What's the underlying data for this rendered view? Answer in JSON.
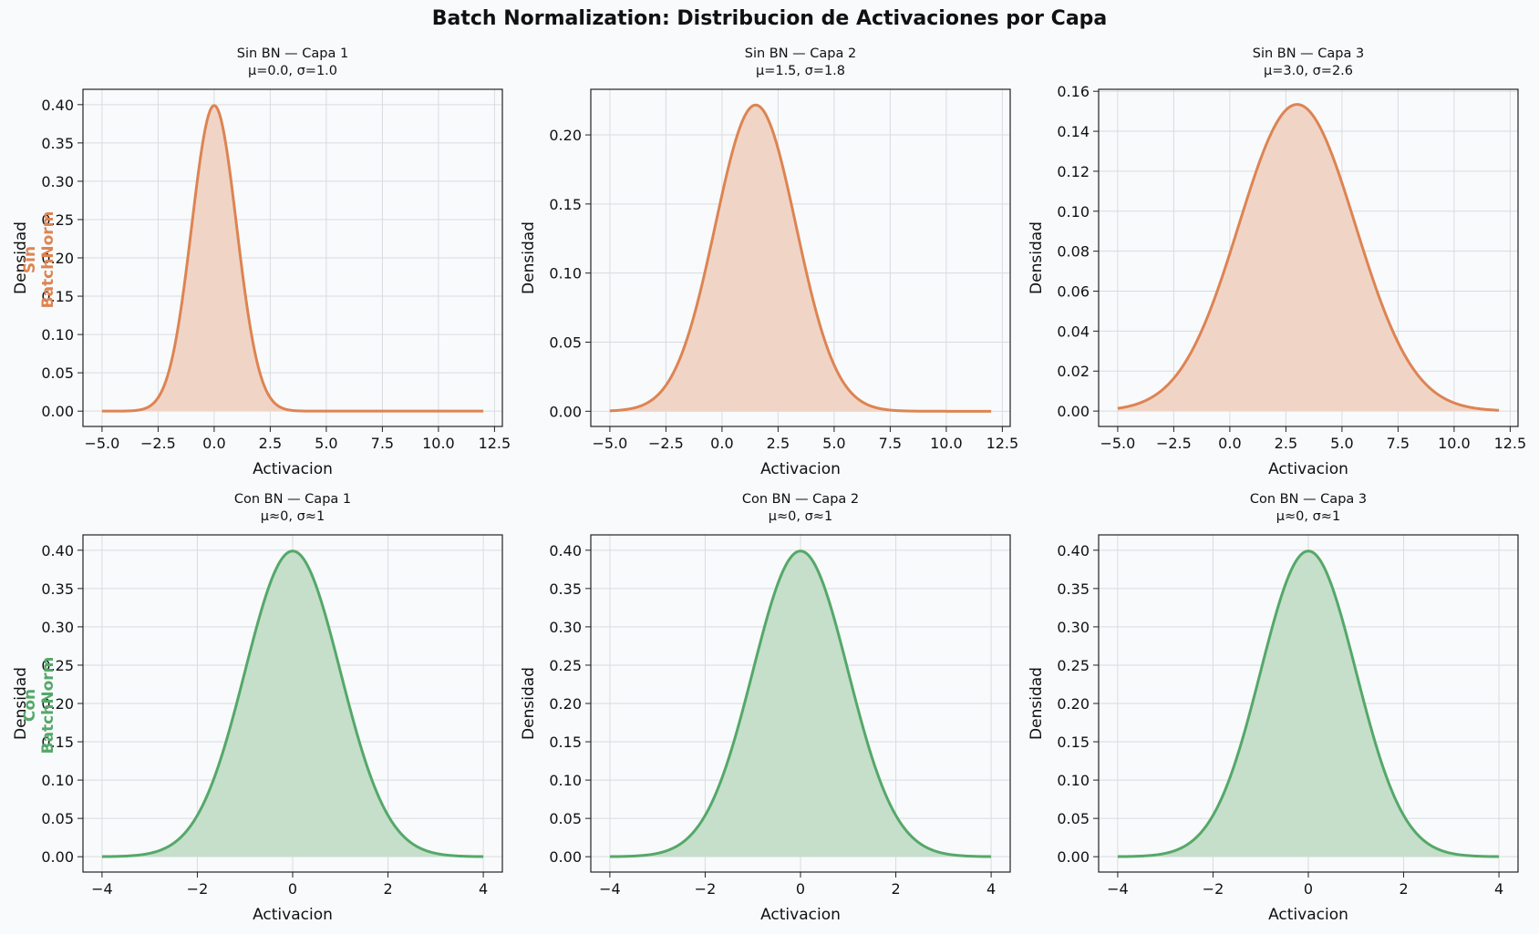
{
  "figure": {
    "title": "Batch Normalization: Distribucion de Activaciones por Capa"
  },
  "colors": {
    "without_bn": "#dd8452",
    "with_bn": "#55a868",
    "without_bn_fill": "#f0d5c7",
    "with_bn_fill": "#c5dfcb"
  },
  "row_labels": [
    {
      "lines": [
        "Sin",
        "BatchNorm"
      ],
      "color": "#dd8452"
    },
    {
      "lines": [
        "Con",
        "BatchNorm"
      ],
      "color": "#55a868"
    }
  ],
  "chart_data": [
    {
      "type": "area",
      "title": "Sin BN — Capa 1",
      "subtitle": "μ=0.0, σ=1.0",
      "xlabel": "Activacion",
      "ylabel": "Densidad",
      "mean": 0.0,
      "std": 1.0,
      "x_range": [
        -5,
        12
      ],
      "xlim": [
        -5.85,
        12.85
      ],
      "ylim": [
        -0.02,
        0.42
      ],
      "xticks": [
        -5.0,
        -2.5,
        0.0,
        2.5,
        5.0,
        7.5,
        10.0,
        12.5
      ],
      "xtick_labels": [
        "−5.0",
        "−2.5",
        "0.0",
        "2.5",
        "5.0",
        "7.5",
        "10.0",
        "12.5"
      ],
      "yticks": [
        0,
        0.05,
        0.1,
        0.15,
        0.2,
        0.25,
        0.3,
        0.35,
        0.4
      ],
      "ytick_labels": [
        "0.00",
        "0.05",
        "0.10",
        "0.15",
        "0.20",
        "0.25",
        "0.30",
        "0.35",
        "0.40"
      ],
      "color": "#dd8452",
      "grid": true
    },
    {
      "type": "area",
      "title": "Sin BN — Capa 2",
      "subtitle": "μ=1.5, σ=1.8",
      "xlabel": "Activacion",
      "ylabel": "Densidad",
      "mean": 1.5,
      "std": 1.8,
      "x_range": [
        -5,
        12
      ],
      "xlim": [
        -5.85,
        12.85
      ],
      "ylim": [
        -0.011,
        0.233
      ],
      "xticks": [
        -5.0,
        -2.5,
        0.0,
        2.5,
        5.0,
        7.5,
        10.0,
        12.5
      ],
      "xtick_labels": [
        "−5.0",
        "−2.5",
        "0.0",
        "2.5",
        "5.0",
        "7.5",
        "10.0",
        "12.5"
      ],
      "yticks": [
        0,
        0.05,
        0.1,
        0.15,
        0.2
      ],
      "ytick_labels": [
        "0.00",
        "0.05",
        "0.10",
        "0.15",
        "0.20"
      ],
      "color": "#dd8452",
      "grid": true
    },
    {
      "type": "area",
      "title": "Sin BN — Capa 3",
      "subtitle": "μ=3.0, σ=2.6",
      "xlabel": "Activacion",
      "ylabel": "Densidad",
      "mean": 3.0,
      "std": 2.6,
      "x_range": [
        -5,
        12
      ],
      "xlim": [
        -5.85,
        12.85
      ],
      "ylim": [
        -0.0077,
        0.161
      ],
      "xticks": [
        -5.0,
        -2.5,
        0.0,
        2.5,
        5.0,
        7.5,
        10.0,
        12.5
      ],
      "xtick_labels": [
        "−5.0",
        "−2.5",
        "0.0",
        "2.5",
        "5.0",
        "7.5",
        "10.0",
        "12.5"
      ],
      "yticks": [
        0,
        0.02,
        0.04,
        0.06,
        0.08,
        0.1,
        0.12,
        0.14,
        0.16
      ],
      "ytick_labels": [
        "0.00",
        "0.02",
        "0.04",
        "0.06",
        "0.08",
        "0.10",
        "0.12",
        "0.14",
        "0.16"
      ],
      "color": "#dd8452",
      "grid": true
    },
    {
      "type": "area",
      "title": "Con BN — Capa 1",
      "subtitle": "μ≈0, σ≈1",
      "xlabel": "Activacion",
      "ylabel": "Densidad",
      "mean": 0.0,
      "std": 1.0,
      "x_range": [
        -4,
        4
      ],
      "xlim": [
        -4.4,
        4.4
      ],
      "ylim": [
        -0.02,
        0.42
      ],
      "xticks": [
        -4,
        -2,
        0,
        2,
        4
      ],
      "xtick_labels": [
        "−4",
        "−2",
        "0",
        "2",
        "4"
      ],
      "yticks": [
        0,
        0.05,
        0.1,
        0.15,
        0.2,
        0.25,
        0.3,
        0.35,
        0.4
      ],
      "ytick_labels": [
        "0.00",
        "0.05",
        "0.10",
        "0.15",
        "0.20",
        "0.25",
        "0.30",
        "0.35",
        "0.40"
      ],
      "color": "#55a868",
      "grid": true
    },
    {
      "type": "area",
      "title": "Con BN — Capa 2",
      "subtitle": "μ≈0, σ≈1",
      "xlabel": "Activacion",
      "ylabel": "Densidad",
      "mean": 0.0,
      "std": 1.0,
      "x_range": [
        -4,
        4
      ],
      "xlim": [
        -4.4,
        4.4
      ],
      "ylim": [
        -0.02,
        0.42
      ],
      "xticks": [
        -4,
        -2,
        0,
        2,
        4
      ],
      "xtick_labels": [
        "−4",
        "−2",
        "0",
        "2",
        "4"
      ],
      "yticks": [
        0,
        0.05,
        0.1,
        0.15,
        0.2,
        0.25,
        0.3,
        0.35,
        0.4
      ],
      "ytick_labels": [
        "0.00",
        "0.05",
        "0.10",
        "0.15",
        "0.20",
        "0.25",
        "0.30",
        "0.35",
        "0.40"
      ],
      "color": "#55a868",
      "grid": true
    },
    {
      "type": "area",
      "title": "Con BN — Capa 3",
      "subtitle": "μ≈0, σ≈1",
      "xlabel": "Activacion",
      "ylabel": "Densidad",
      "mean": 0.0,
      "std": 1.0,
      "x_range": [
        -4,
        4
      ],
      "xlim": [
        -4.4,
        4.4
      ],
      "ylim": [
        -0.02,
        0.42
      ],
      "xticks": [
        -4,
        -2,
        0,
        2,
        4
      ],
      "xtick_labels": [
        "−4",
        "−2",
        "0",
        "2",
        "4"
      ],
      "yticks": [
        0,
        0.05,
        0.1,
        0.15,
        0.2,
        0.25,
        0.3,
        0.35,
        0.4
      ],
      "ytick_labels": [
        "0.00",
        "0.05",
        "0.10",
        "0.15",
        "0.20",
        "0.25",
        "0.30",
        "0.35",
        "0.40"
      ],
      "color": "#55a868",
      "grid": true
    }
  ]
}
